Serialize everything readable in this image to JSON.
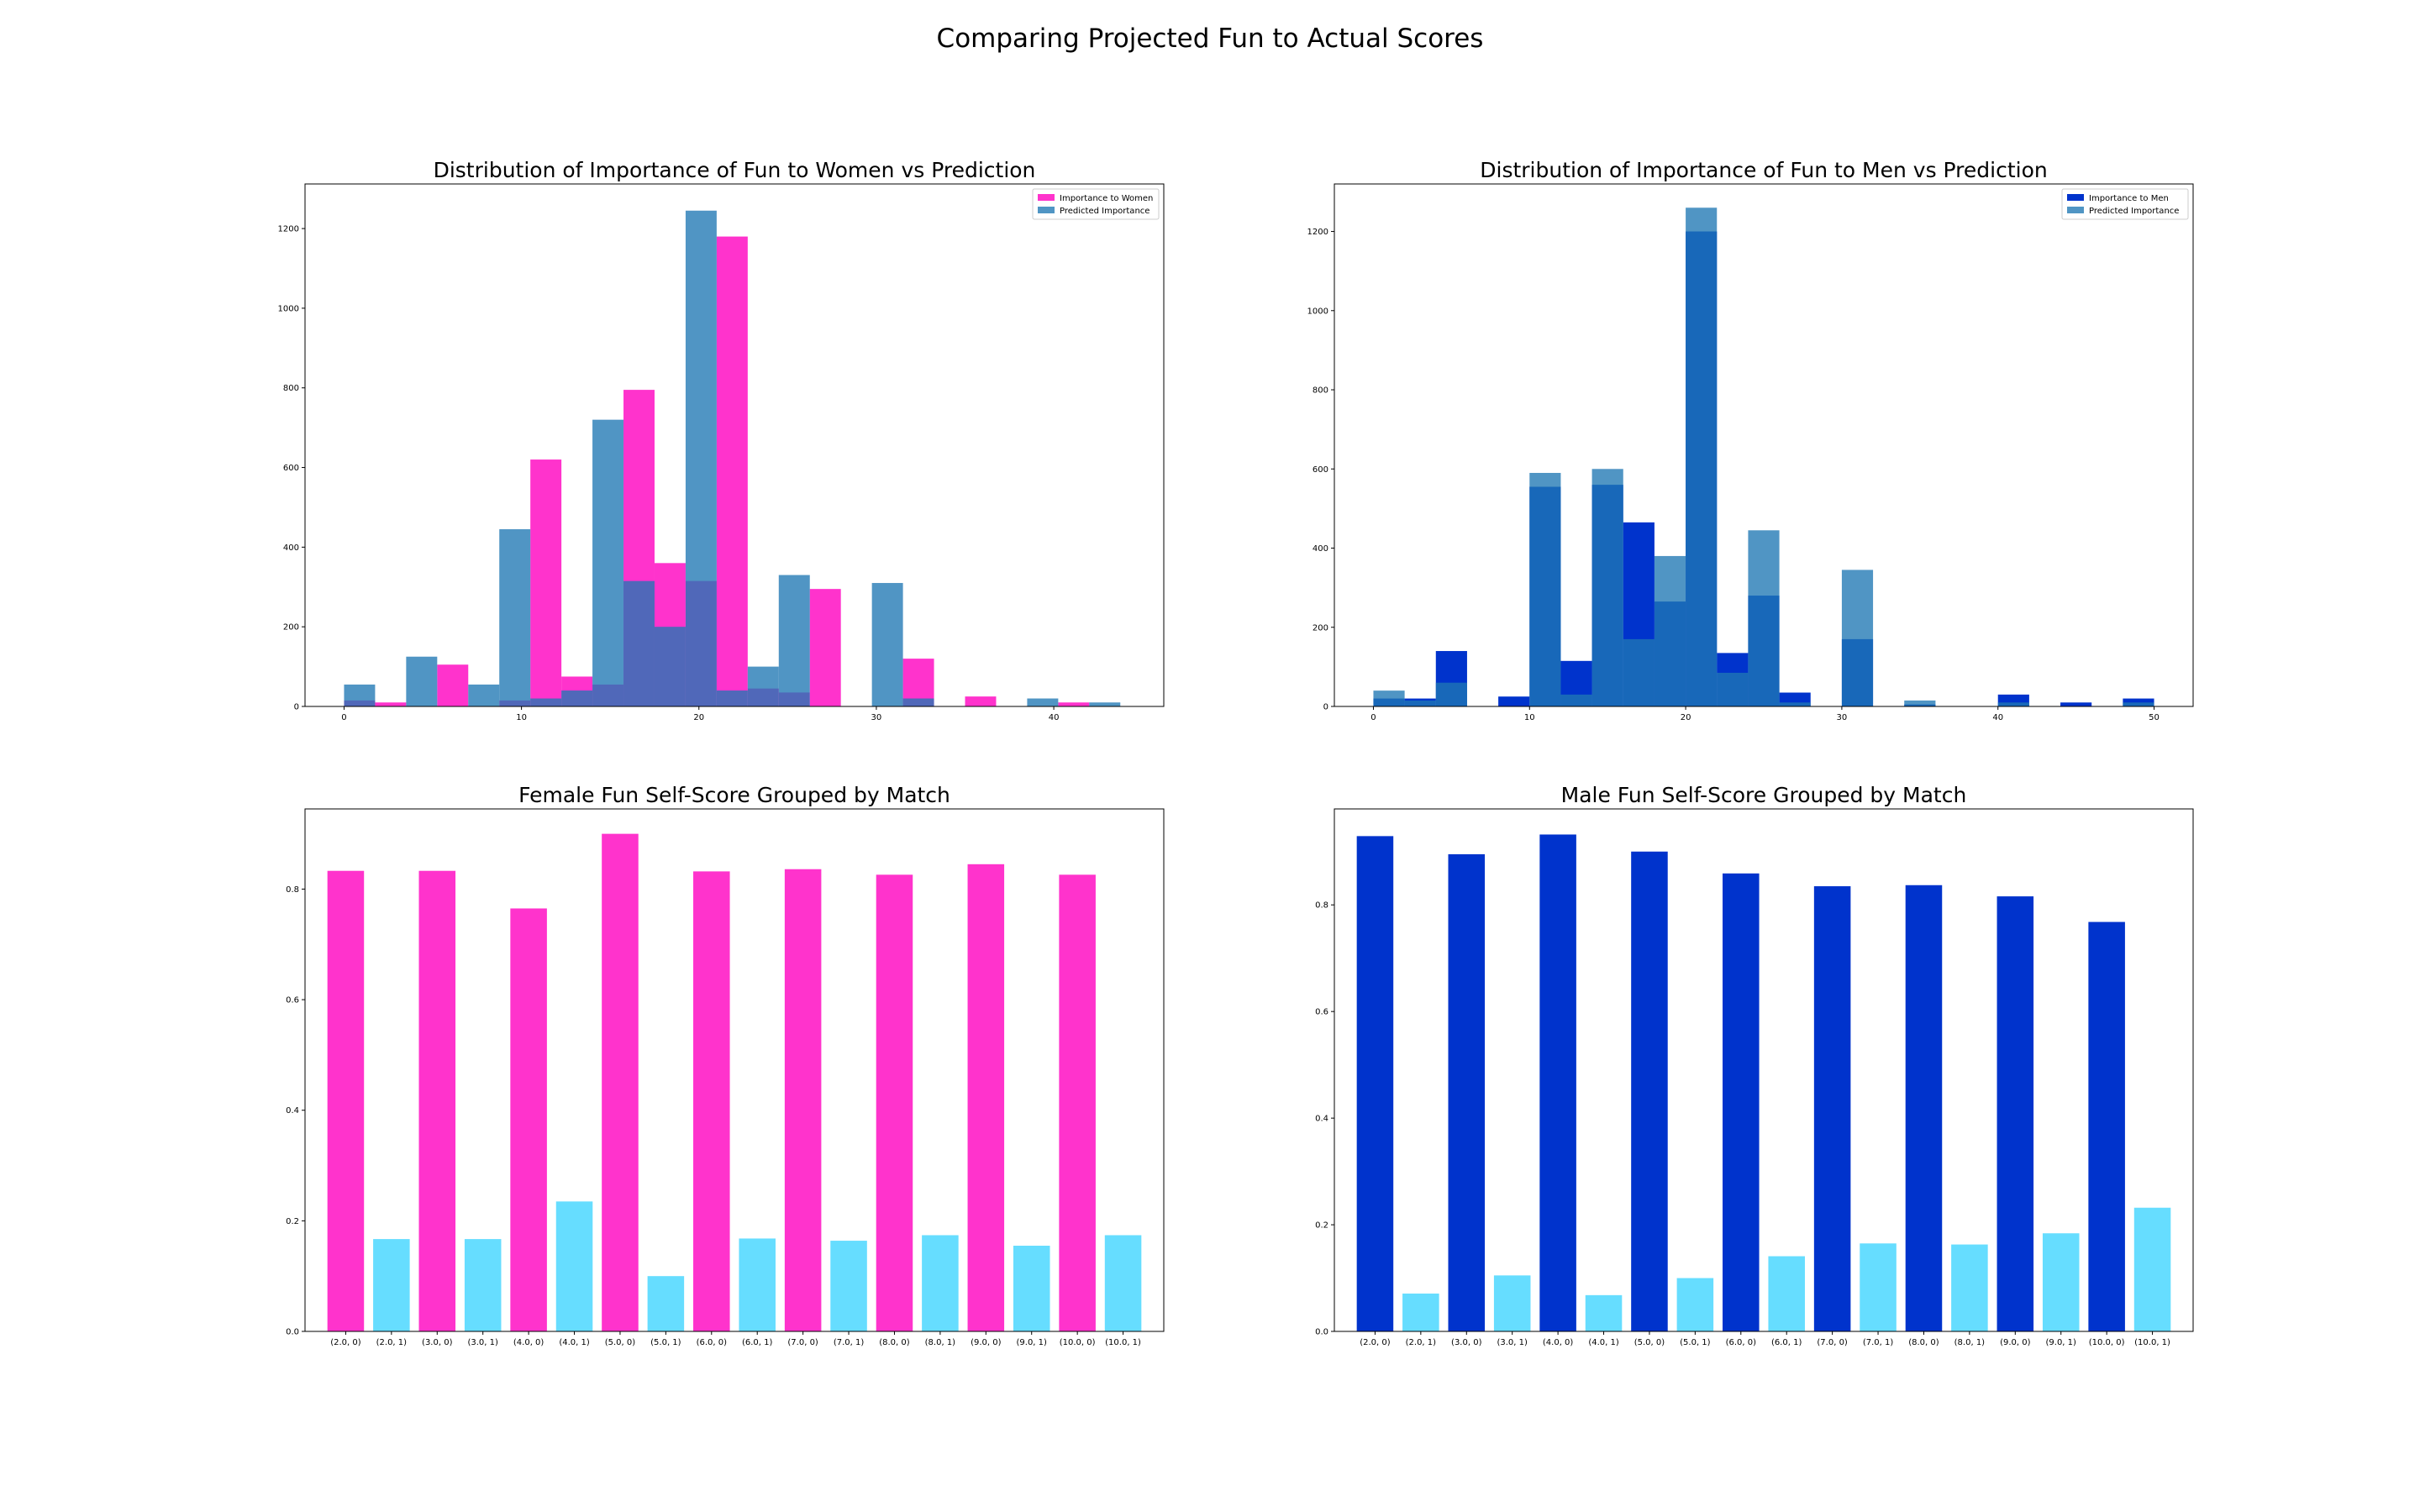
{
  "suptitle": "Comparing Projected Fun to Actual Scores",
  "colors": {
    "women": "#ff33cc",
    "predicted": "#1f77b4",
    "men": "#0033cc",
    "match1": "#66ddff"
  },
  "chart_data": [
    {
      "type": "bar",
      "subtype": "histogram-overlay",
      "title": "Distribution of Importance of Fun to Women vs Prediction",
      "xlabel": "",
      "ylabel": "",
      "xlim": [
        -2.2,
        46.2
      ],
      "ylim": [
        0,
        1312
      ],
      "xticks": [
        0,
        10,
        20,
        30,
        40
      ],
      "yticks": [
        0,
        200,
        400,
        600,
        800,
        1000,
        1200
      ],
      "legend": "top-right",
      "series": [
        {
          "name": "Importance to Women",
          "color": "women",
          "alpha": 1.0,
          "bins": [
            [
              0,
              1.75,
              15
            ],
            [
              1.75,
              3.5,
              10
            ],
            [
              3.5,
              5.25,
              0
            ],
            [
              5.25,
              7,
              105
            ],
            [
              7,
              8.75,
              0
            ],
            [
              8.75,
              10.5,
              15
            ],
            [
              10.5,
              12.25,
              620
            ],
            [
              12.25,
              14,
              75
            ],
            [
              14,
              15.75,
              55
            ],
            [
              15.75,
              17.5,
              795
            ],
            [
              17.5,
              19.25,
              360
            ],
            [
              19.25,
              21,
              315
            ],
            [
              21,
              22.75,
              1180
            ],
            [
              22.75,
              24.5,
              45
            ],
            [
              24.5,
              26.25,
              35
            ],
            [
              26.25,
              28,
              295
            ],
            [
              28,
              29.75,
              0
            ],
            [
              29.75,
              31.5,
              0
            ],
            [
              31.5,
              33.25,
              120
            ],
            [
              33.25,
              35,
              0
            ],
            [
              35,
              36.75,
              25
            ],
            [
              36.75,
              38.5,
              0
            ],
            [
              38.5,
              40.25,
              0
            ],
            [
              40.25,
              42,
              10
            ]
          ]
        },
        {
          "name": "Predicted Importance",
          "color": "predicted",
          "alpha": 0.78,
          "bins": [
            [
              0,
              1.75,
              55
            ],
            [
              1.75,
              3.5,
              0
            ],
            [
              3.5,
              5.25,
              125
            ],
            [
              5.25,
              7,
              0
            ],
            [
              7,
              8.75,
              55
            ],
            [
              8.75,
              10.5,
              445
            ],
            [
              10.5,
              12.25,
              20
            ],
            [
              12.25,
              14,
              40
            ],
            [
              14,
              15.75,
              720
            ],
            [
              15.75,
              17.5,
              315
            ],
            [
              17.5,
              19.25,
              200
            ],
            [
              19.25,
              21,
              1245
            ],
            [
              21,
              22.75,
              40
            ],
            [
              22.75,
              24.5,
              100
            ],
            [
              24.5,
              26.25,
              330
            ],
            [
              26.25,
              28,
              0
            ],
            [
              28,
              29.75,
              0
            ],
            [
              29.75,
              31.5,
              310
            ],
            [
              31.5,
              33.25,
              20
            ],
            [
              33.25,
              35,
              0
            ],
            [
              35,
              36.75,
              0
            ],
            [
              36.75,
              38.5,
              0
            ],
            [
              38.5,
              40.25,
              20
            ],
            [
              40.25,
              42,
              0
            ],
            [
              42,
              43.75,
              10
            ]
          ]
        }
      ]
    },
    {
      "type": "bar",
      "subtype": "histogram-overlay",
      "title": "Distribution of Importance of Fun to Men vs Prediction",
      "xlabel": "",
      "ylabel": "",
      "xlim": [
        -2.5,
        52.5
      ],
      "ylim": [
        0,
        1320
      ],
      "xticks": [
        0,
        10,
        20,
        30,
        40,
        50
      ],
      "yticks": [
        0,
        200,
        400,
        600,
        800,
        1000,
        1200
      ],
      "legend": "top-right",
      "series": [
        {
          "name": "Importance to Men",
          "color": "men",
          "alpha": 1.0,
          "bins": [
            [
              0,
              2,
              20
            ],
            [
              2,
              4,
              20
            ],
            [
              4,
              6,
              140
            ],
            [
              6,
              8,
              0
            ],
            [
              8,
              10,
              25
            ],
            [
              10,
              12,
              555
            ],
            [
              12,
              14,
              115
            ],
            [
              14,
              16,
              560
            ],
            [
              16,
              18,
              465
            ],
            [
              18,
              20,
              265
            ],
            [
              20,
              22,
              1200
            ],
            [
              22,
              24,
              135
            ],
            [
              24,
              26,
              280
            ],
            [
              26,
              28,
              35
            ],
            [
              28,
              30,
              0
            ],
            [
              30,
              32,
              170
            ],
            [
              32,
              34,
              0
            ],
            [
              34,
              36,
              5
            ],
            [
              36,
              38,
              0
            ],
            [
              38,
              40,
              0
            ],
            [
              40,
              42,
              30
            ],
            [
              42,
              44,
              0
            ],
            [
              44,
              46,
              10
            ],
            [
              46,
              48,
              0
            ],
            [
              48,
              50,
              20
            ]
          ]
        },
        {
          "name": "Predicted Importance",
          "color": "predicted",
          "alpha": 0.78,
          "bins": [
            [
              0,
              2,
              40
            ],
            [
              2,
              4,
              15
            ],
            [
              4,
              6,
              60
            ],
            [
              6,
              8,
              0
            ],
            [
              8,
              10,
              0
            ],
            [
              10,
              12,
              590
            ],
            [
              12,
              14,
              30
            ],
            [
              14,
              16,
              600
            ],
            [
              16,
              18,
              170
            ],
            [
              18,
              20,
              380
            ],
            [
              20,
              22,
              1260
            ],
            [
              22,
              24,
              85
            ],
            [
              24,
              26,
              445
            ],
            [
              26,
              28,
              10
            ],
            [
              28,
              30,
              0
            ],
            [
              30,
              32,
              345
            ],
            [
              32,
              34,
              0
            ],
            [
              34,
              36,
              15
            ],
            [
              36,
              38,
              0
            ],
            [
              38,
              40,
              0
            ],
            [
              40,
              42,
              10
            ],
            [
              42,
              44,
              0
            ],
            [
              44,
              46,
              0
            ],
            [
              46,
              48,
              0
            ],
            [
              48,
              50,
              10
            ]
          ]
        }
      ]
    },
    {
      "type": "bar",
      "title": "Female Fun Self-Score Grouped by Match",
      "xlabel": "",
      "ylabel": "",
      "ylim": [
        0,
        0.945
      ],
      "yticks": [
        0.0,
        0.2,
        0.4,
        0.6,
        0.8
      ],
      "categories": [
        "(2.0, 0)",
        "(2.0, 1)",
        "(3.0, 0)",
        "(3.0, 1)",
        "(4.0, 0)",
        "(4.0, 1)",
        "(5.0, 0)",
        "(5.0, 1)",
        "(6.0, 0)",
        "(6.0, 1)",
        "(7.0, 0)",
        "(7.0, 1)",
        "(8.0, 0)",
        "(8.0, 1)",
        "(9.0, 0)",
        "(9.0, 1)",
        "(10.0, 0)",
        "(10.0, 1)"
      ],
      "values": [
        0.833,
        0.167,
        0.833,
        0.167,
        0.765,
        0.235,
        0.9,
        0.1,
        0.832,
        0.168,
        0.836,
        0.164,
        0.826,
        0.174,
        0.845,
        0.155,
        0.826,
        0.174
      ],
      "bar_colors": [
        "women",
        "match1",
        "women",
        "match1",
        "women",
        "match1",
        "women",
        "match1",
        "women",
        "match1",
        "women",
        "match1",
        "women",
        "match1",
        "women",
        "match1",
        "women",
        "match1"
      ]
    },
    {
      "type": "bar",
      "title": "Male Fun Self-Score Grouped by Match",
      "xlabel": "",
      "ylabel": "",
      "ylim": [
        0,
        0.98
      ],
      "yticks": [
        0.0,
        0.2,
        0.4,
        0.6,
        0.8
      ],
      "categories": [
        "(2.0, 0)",
        "(2.0, 1)",
        "(3.0, 0)",
        "(3.0, 1)",
        "(4.0, 0)",
        "(4.0, 1)",
        "(5.0, 0)",
        "(5.0, 1)",
        "(6.0, 0)",
        "(6.0, 1)",
        "(7.0, 0)",
        "(7.0, 1)",
        "(8.0, 0)",
        "(8.0, 1)",
        "(9.0, 0)",
        "(9.0, 1)",
        "(10.0, 0)",
        "(10.0, 1)"
      ],
      "values": [
        0.929,
        0.071,
        0.895,
        0.105,
        0.932,
        0.068,
        0.9,
        0.1,
        0.859,
        0.141,
        0.835,
        0.165,
        0.837,
        0.163,
        0.816,
        0.184,
        0.768,
        0.232
      ],
      "bar_colors": [
        "men",
        "match1",
        "men",
        "match1",
        "men",
        "match1",
        "men",
        "match1",
        "men",
        "match1",
        "men",
        "match1",
        "men",
        "match1",
        "men",
        "match1",
        "men",
        "match1"
      ]
    }
  ]
}
